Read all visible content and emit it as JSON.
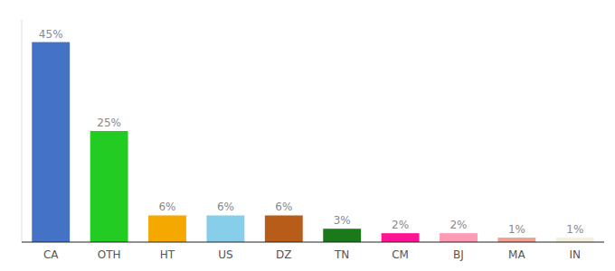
{
  "chart_data": {
    "type": "bar",
    "categories": [
      "CA",
      "OTH",
      "HT",
      "US",
      "DZ",
      "TN",
      "CM",
      "BJ",
      "MA",
      "IN"
    ],
    "values": [
      45,
      25,
      6,
      6,
      6,
      3,
      2,
      2,
      1,
      1
    ],
    "value_labels": [
      "45%",
      "25%",
      "6%",
      "6%",
      "6%",
      "3%",
      "2%",
      "2%",
      "1%",
      "1%"
    ],
    "colors": [
      "#4472c4",
      "#22cc22",
      "#f5a800",
      "#87ceeb",
      "#b85c1a",
      "#1a7a1a",
      "#ff1493",
      "#ff9ab5",
      "#f0a090",
      "#f5f0dc"
    ],
    "ylim": [
      0,
      50
    ],
    "data_labels": true,
    "tick_labels": "x"
  }
}
